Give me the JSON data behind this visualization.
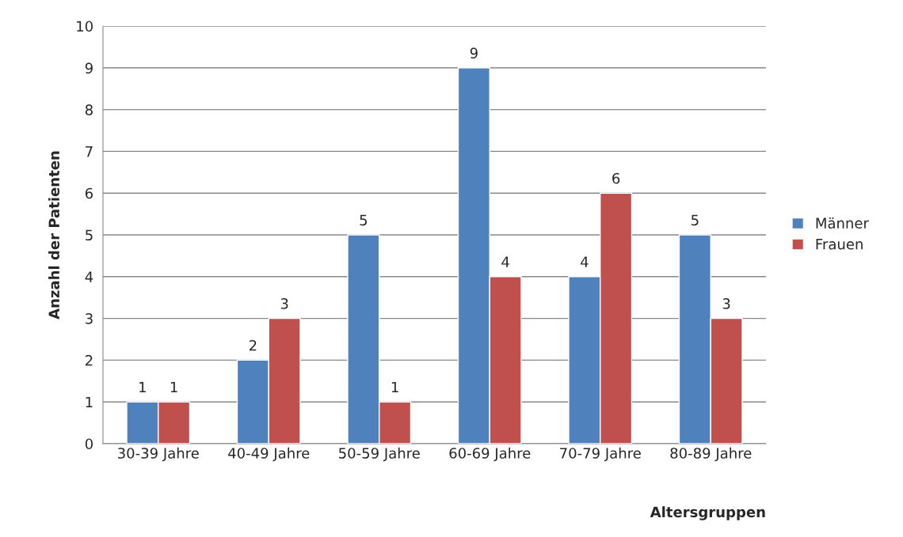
{
  "chart_data": {
    "type": "bar",
    "xlabel": "Altersgruppen",
    "ylabel": "Anzahl der Patienten",
    "categories": [
      "30-39 Jahre",
      "40-49 Jahre",
      "50-59 Jahre",
      "60-69 Jahre",
      "70-79 Jahre",
      "80-89 Jahre"
    ],
    "series": [
      {
        "name": "Männer",
        "color": "#4f81bd",
        "values": [
          1,
          2,
          5,
          9,
          4,
          5
        ]
      },
      {
        "name": "Frauen",
        "color": "#c0504d",
        "values": [
          1,
          3,
          1,
          4,
          6,
          3
        ]
      }
    ],
    "ylim": [
      0,
      10
    ],
    "yticks": [
      0,
      1,
      2,
      3,
      4,
      5,
      6,
      7,
      8,
      9,
      10
    ],
    "grid": "y",
    "legend": "right",
    "data_labels": true
  }
}
